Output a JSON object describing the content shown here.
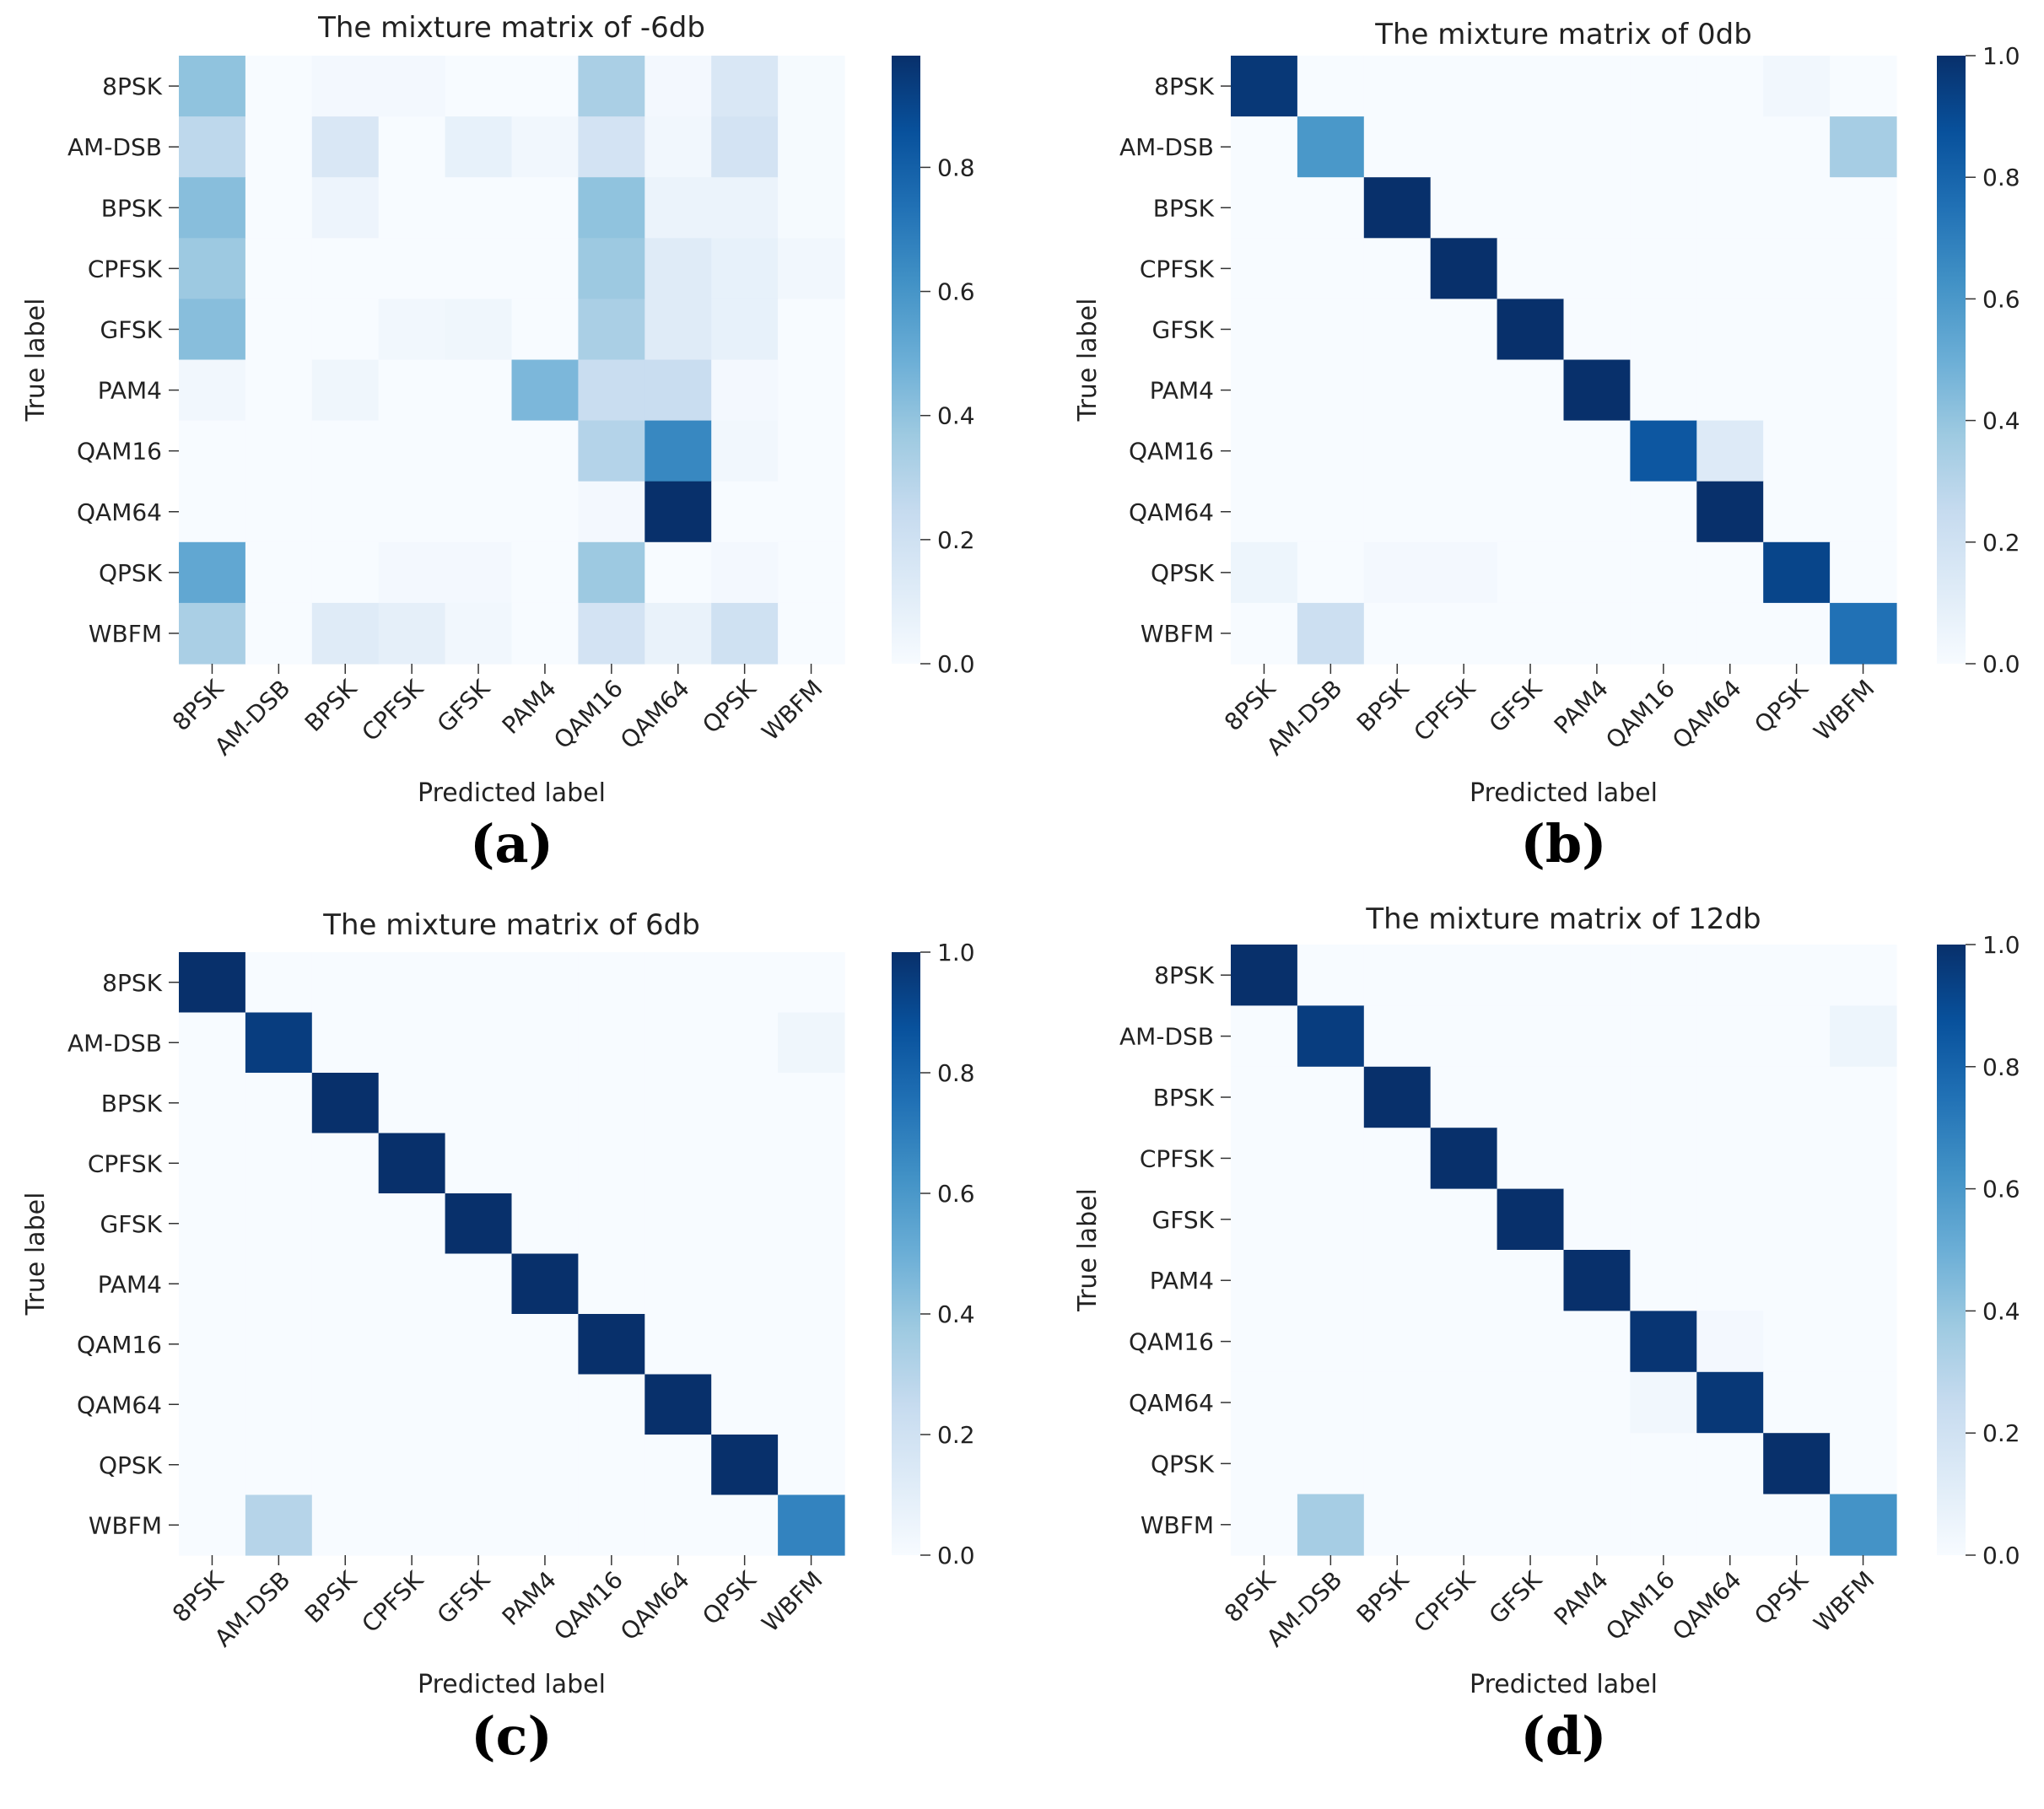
{
  "figure": {
    "panels": [
      "(a)",
      "(b)",
      "(c)",
      "(d)"
    ]
  },
  "chart_data": [
    {
      "type": "heatmap",
      "title": "The mixture matrix of -6db",
      "xlabel": "Predicted label",
      "ylabel": "True label",
      "caption": "(a)",
      "x_categories": [
        "8PSK",
        "AM-DSB",
        "BPSK",
        "CPFSK",
        "GFSK",
        "PAM4",
        "QAM16",
        "QAM64",
        "QPSK",
        "WBFM"
      ],
      "y_categories": [
        "8PSK",
        "AM-DSB",
        "BPSK",
        "CPFSK",
        "GFSK",
        "PAM4",
        "QAM16",
        "QAM64",
        "QPSK",
        "WBFM"
      ],
      "colorbar": {
        "range": [
          0,
          0.98
        ],
        "ticks": [
          "0.0",
          "0.2",
          "0.4",
          "0.6",
          "0.8"
        ],
        "tick_values": [
          0,
          0.2,
          0.4,
          0.6,
          0.8
        ],
        "colormap": "Blues"
      },
      "values": [
        [
          0.4,
          0.0,
          0.02,
          0.02,
          0.0,
          0.0,
          0.33,
          0.02,
          0.15,
          0.01
        ],
        [
          0.27,
          0.0,
          0.15,
          0.0,
          0.08,
          0.03,
          0.18,
          0.03,
          0.18,
          0.01
        ],
        [
          0.42,
          0.0,
          0.05,
          0.0,
          0.0,
          0.0,
          0.4,
          0.06,
          0.06,
          0.01
        ],
        [
          0.37,
          0.0,
          0.0,
          0.0,
          0.0,
          0.0,
          0.37,
          0.12,
          0.08,
          0.03
        ],
        [
          0.42,
          0.0,
          0.0,
          0.03,
          0.04,
          0.0,
          0.33,
          0.12,
          0.08,
          0.0
        ],
        [
          0.03,
          0.0,
          0.04,
          0.0,
          0.0,
          0.45,
          0.23,
          0.23,
          0.02,
          0.0
        ],
        [
          0.0,
          0.0,
          0.0,
          0.0,
          0.0,
          0.0,
          0.3,
          0.65,
          0.03,
          0.0
        ],
        [
          0.0,
          0.0,
          0.0,
          0.0,
          0.0,
          0.0,
          0.02,
          0.98,
          0.0,
          0.0
        ],
        [
          0.52,
          0.0,
          0.0,
          0.02,
          0.02,
          0.0,
          0.37,
          0.0,
          0.02,
          0.0
        ],
        [
          0.33,
          0.0,
          0.12,
          0.09,
          0.03,
          0.0,
          0.18,
          0.07,
          0.2,
          0.0
        ]
      ]
    },
    {
      "type": "heatmap",
      "title": "The mixture matrix of 0db",
      "xlabel": "Predicted label",
      "ylabel": "True label",
      "caption": "(b)",
      "x_categories": [
        "8PSK",
        "AM-DSB",
        "BPSK",
        "CPFSK",
        "GFSK",
        "PAM4",
        "QAM16",
        "QAM64",
        "QPSK",
        "WBFM"
      ],
      "y_categories": [
        "8PSK",
        "AM-DSB",
        "BPSK",
        "CPFSK",
        "GFSK",
        "PAM4",
        "QAM16",
        "QAM64",
        "QPSK",
        "WBFM"
      ],
      "colorbar": {
        "range": [
          0,
          1.0
        ],
        "ticks": [
          "0.0",
          "0.2",
          "0.4",
          "0.6",
          "0.8",
          "1.0"
        ],
        "tick_values": [
          0,
          0.2,
          0.4,
          0.6,
          0.8,
          1.0
        ],
        "colormap": "Blues"
      },
      "values": [
        [
          0.97,
          0.0,
          0.0,
          0.0,
          0.0,
          0.0,
          0.0,
          0.0,
          0.03,
          0.0
        ],
        [
          0.0,
          0.6,
          0.0,
          0.0,
          0.0,
          0.0,
          0.0,
          0.0,
          0.0,
          0.35
        ],
        [
          0.0,
          0.0,
          1.0,
          0.0,
          0.0,
          0.0,
          0.0,
          0.0,
          0.0,
          0.0
        ],
        [
          0.0,
          0.0,
          0.0,
          1.0,
          0.0,
          0.0,
          0.0,
          0.0,
          0.0,
          0.0
        ],
        [
          0.0,
          0.0,
          0.0,
          0.0,
          1.0,
          0.0,
          0.0,
          0.0,
          0.0,
          0.0
        ],
        [
          0.0,
          0.0,
          0.0,
          0.0,
          0.0,
          1.0,
          0.0,
          0.0,
          0.0,
          0.0
        ],
        [
          0.0,
          0.0,
          0.0,
          0.0,
          0.0,
          0.0,
          0.85,
          0.13,
          0.0,
          0.0
        ],
        [
          0.0,
          0.0,
          0.0,
          0.0,
          0.0,
          0.0,
          0.0,
          1.0,
          0.0,
          0.0
        ],
        [
          0.05,
          0.0,
          0.02,
          0.02,
          0.0,
          0.0,
          0.0,
          0.0,
          0.92,
          0.0
        ],
        [
          0.0,
          0.22,
          0.0,
          0.0,
          0.0,
          0.0,
          0.0,
          0.0,
          0.0,
          0.75
        ]
      ]
    },
    {
      "type": "heatmap",
      "title": "The mixture matrix of 6db",
      "xlabel": "Predicted label",
      "ylabel": "True label",
      "caption": "(c)",
      "x_categories": [
        "8PSK",
        "AM-DSB",
        "BPSK",
        "CPFSK",
        "GFSK",
        "PAM4",
        "QAM16",
        "QAM64",
        "QPSK",
        "WBFM"
      ],
      "y_categories": [
        "8PSK",
        "AM-DSB",
        "BPSK",
        "CPFSK",
        "GFSK",
        "PAM4",
        "QAM16",
        "QAM64",
        "QPSK",
        "WBFM"
      ],
      "colorbar": {
        "range": [
          0,
          1.0
        ],
        "ticks": [
          "0.0",
          "0.2",
          "0.4",
          "0.6",
          "0.8",
          "1.0"
        ],
        "tick_values": [
          0,
          0.2,
          0.4,
          0.6,
          0.8,
          1.0
        ],
        "colormap": "Blues"
      },
      "values": [
        [
          1.0,
          0.0,
          0.0,
          0.0,
          0.0,
          0.0,
          0.0,
          0.0,
          0.0,
          0.0
        ],
        [
          0.0,
          0.95,
          0.0,
          0.0,
          0.0,
          0.0,
          0.0,
          0.0,
          0.0,
          0.04
        ],
        [
          0.0,
          0.0,
          1.0,
          0.0,
          0.0,
          0.0,
          0.0,
          0.0,
          0.0,
          0.0
        ],
        [
          0.0,
          0.0,
          0.0,
          1.0,
          0.0,
          0.0,
          0.0,
          0.0,
          0.0,
          0.0
        ],
        [
          0.0,
          0.0,
          0.0,
          0.0,
          1.0,
          0.0,
          0.0,
          0.0,
          0.0,
          0.0
        ],
        [
          0.0,
          0.0,
          0.0,
          0.0,
          0.0,
          1.0,
          0.0,
          0.0,
          0.0,
          0.0
        ],
        [
          0.0,
          0.0,
          0.0,
          0.0,
          0.0,
          0.0,
          1.0,
          0.0,
          0.0,
          0.0
        ],
        [
          0.0,
          0.0,
          0.0,
          0.0,
          0.0,
          0.0,
          0.0,
          1.0,
          0.0,
          0.0
        ],
        [
          0.0,
          0.0,
          0.0,
          0.0,
          0.0,
          0.0,
          0.0,
          0.0,
          1.0,
          0.0
        ],
        [
          0.0,
          0.3,
          0.0,
          0.0,
          0.0,
          0.0,
          0.0,
          0.0,
          0.0,
          0.68
        ]
      ]
    },
    {
      "type": "heatmap",
      "title": "The mixture matrix of 12db",
      "xlabel": "Predicted label",
      "ylabel": "True label",
      "caption": "(d)",
      "x_categories": [
        "8PSK",
        "AM-DSB",
        "BPSK",
        "CPFSK",
        "GFSK",
        "PAM4",
        "QAM16",
        "QAM64",
        "QPSK",
        "WBFM"
      ],
      "y_categories": [
        "8PSK",
        "AM-DSB",
        "BPSK",
        "CPFSK",
        "GFSK",
        "PAM4",
        "QAM16",
        "QAM64",
        "QPSK",
        "WBFM"
      ],
      "colorbar": {
        "range": [
          0,
          1.0
        ],
        "ticks": [
          "0.0",
          "0.2",
          "0.4",
          "0.6",
          "0.8",
          "1.0"
        ],
        "tick_values": [
          0,
          0.2,
          0.4,
          0.6,
          0.8,
          1.0
        ],
        "colormap": "Blues"
      },
      "values": [
        [
          1.0,
          0.0,
          0.0,
          0.0,
          0.0,
          0.0,
          0.0,
          0.0,
          0.0,
          0.0
        ],
        [
          0.0,
          0.95,
          0.0,
          0.0,
          0.0,
          0.0,
          0.0,
          0.0,
          0.0,
          0.05
        ],
        [
          0.0,
          0.0,
          1.0,
          0.0,
          0.0,
          0.0,
          0.0,
          0.0,
          0.0,
          0.0
        ],
        [
          0.0,
          0.0,
          0.0,
          1.0,
          0.0,
          0.0,
          0.0,
          0.0,
          0.0,
          0.0
        ],
        [
          0.0,
          0.0,
          0.0,
          0.0,
          1.0,
          0.0,
          0.0,
          0.0,
          0.0,
          0.0
        ],
        [
          0.0,
          0.0,
          0.0,
          0.0,
          0.0,
          1.0,
          0.0,
          0.0,
          0.0,
          0.0
        ],
        [
          0.0,
          0.0,
          0.0,
          0.0,
          0.0,
          0.0,
          0.98,
          0.02,
          0.0,
          0.0
        ],
        [
          0.0,
          0.0,
          0.0,
          0.0,
          0.0,
          0.0,
          0.03,
          0.97,
          0.0,
          0.0
        ],
        [
          0.0,
          0.0,
          0.0,
          0.0,
          0.0,
          0.0,
          0.0,
          0.0,
          1.0,
          0.0
        ],
        [
          0.0,
          0.35,
          0.0,
          0.0,
          0.0,
          0.0,
          0.0,
          0.0,
          0.0,
          0.62
        ]
      ]
    }
  ]
}
